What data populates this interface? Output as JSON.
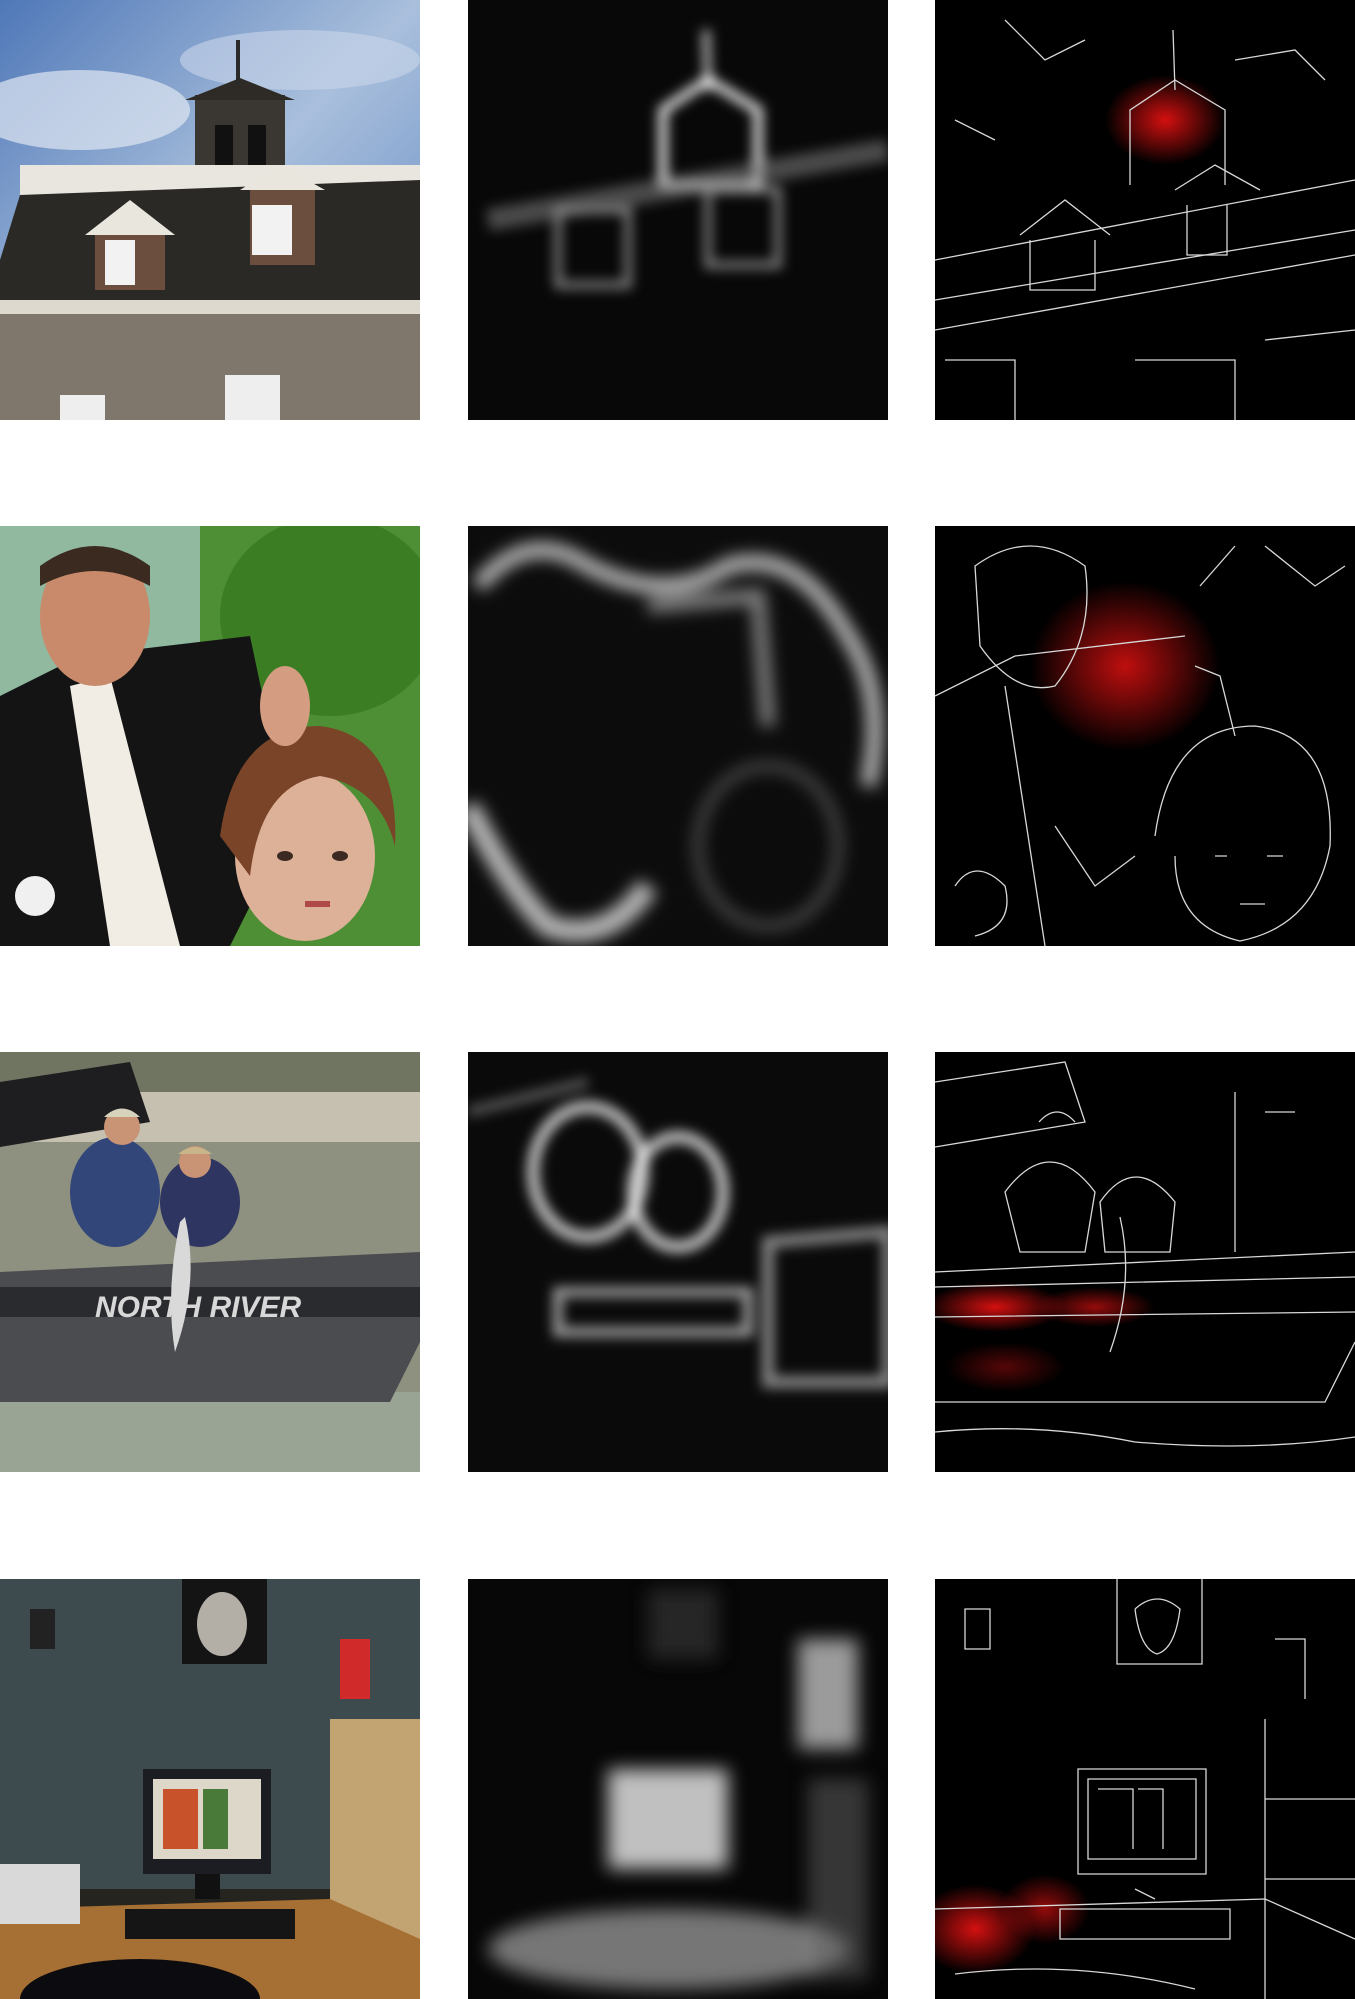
{
  "figure": {
    "columns": [
      "photo",
      "saliency-map",
      "edge-overlay"
    ],
    "rows": [
      {
        "scene": "building-cupola",
        "photo_palette": {
          "sky": "#5f86c2",
          "roof": "#2b2a28",
          "wall": "#8a8274"
        }
      },
      {
        "scene": "hairdresser-portrait",
        "photo_palette": {
          "foliage": "#3f8a2c",
          "jacket": "#141414",
          "skin": "#d9a88c",
          "hair": "#7a4428"
        }
      },
      {
        "scene": "fishing-boat",
        "photo_palette": {
          "water": "#8f9180",
          "hull": "#4a4c50",
          "shirt": "#33467a"
        }
      },
      {
        "scene": "office-desk",
        "photo_palette": {
          "wall": "#3d4a4e",
          "desk": "#b07a3a",
          "monitor": "#1b1d22"
        }
      }
    ],
    "overlay_color": "#d41010"
  }
}
